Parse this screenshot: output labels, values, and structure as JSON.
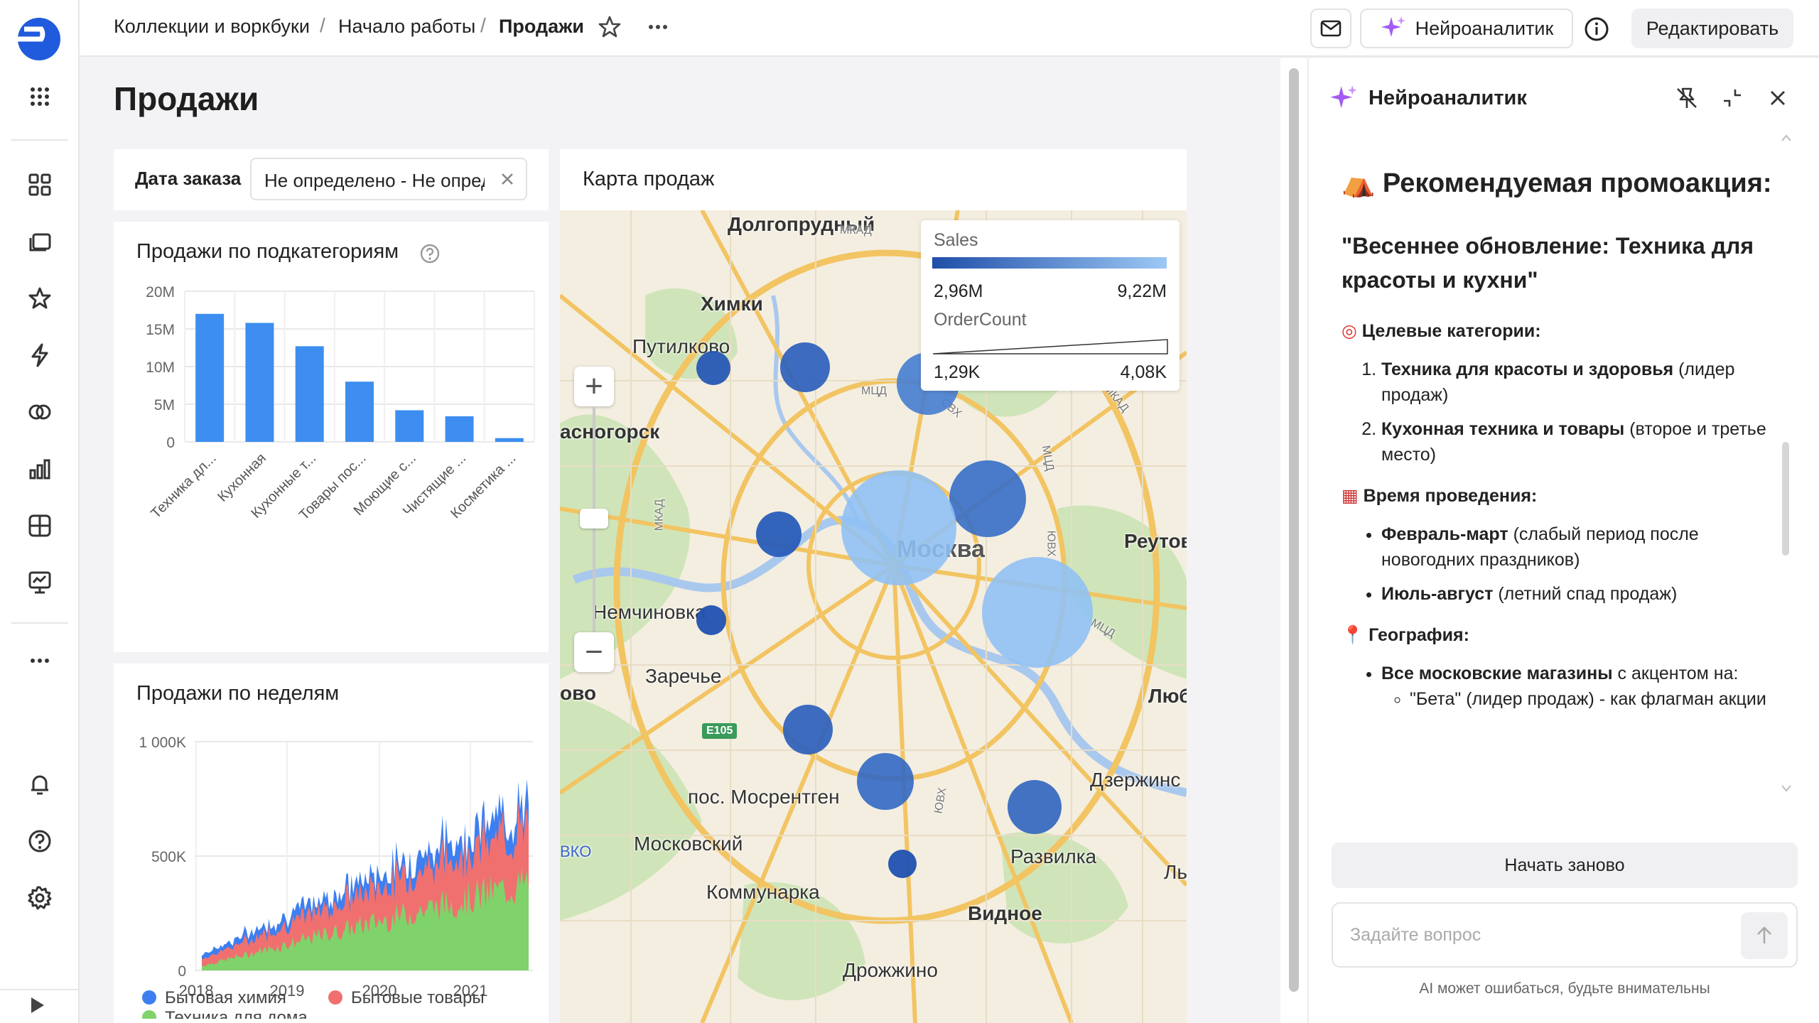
{
  "breadcrumbs": [
    "Коллекции и воркбуки",
    "Начало работы",
    "Продажи"
  ],
  "topbar": {
    "assistant_label": "Нейроаналитик",
    "edit_label": "Редактировать"
  },
  "page": {
    "title": "Продажи"
  },
  "filter": {
    "label": "Дата заказа",
    "value": "Не определено - Не определено"
  },
  "colors": {
    "bar": "#3d8ef0",
    "area_chem": "#3d7ff0",
    "area_goods": "#f07070",
    "area_tech": "#7fd36a",
    "bubble_dark": "#2d5fb8",
    "bubble_light": "#8ec0f5"
  },
  "charts": {
    "subcategories": {
      "title": "Продажи по подкатегориям",
      "chart_data": {
        "type": "bar",
        "categories": [
          "Техника дл...",
          "Кухонная",
          "Кухонные т...",
          "Товары пос...",
          "Моющие с...",
          "Чистящие ...",
          "Косметика ..."
        ],
        "values": [
          17.0,
          15.8,
          12.7,
          8.0,
          4.2,
          3.4,
          0.5
        ],
        "unit": "M",
        "y_ticks": [
          "0",
          "5M",
          "10M",
          "15M",
          "20M"
        ],
        "ylim": [
          0,
          20
        ],
        "grid": true
      }
    },
    "weekly": {
      "title": "Продажи по неделям",
      "chart_data": {
        "type": "area",
        "stacked": true,
        "x_ticks": [
          "2018",
          "2019",
          "2020",
          "2021"
        ],
        "y_ticks": [
          "0",
          "500K",
          "1 000K"
        ],
        "ylim": [
          0,
          1000
        ],
        "series": [
          {
            "name": "Бытовая химия",
            "start": 20,
            "end": 95
          },
          {
            "name": "Бытовые товары",
            "start": 30,
            "end": 250
          },
          {
            "name": "Техника для дома",
            "start": 20,
            "end": 380
          }
        ],
        "legend": "bottom"
      }
    }
  },
  "map": {
    "title": "Карта продаж",
    "labels": [
      "Долгопрудный",
      "Химки",
      "Путилково",
      "асногорск",
      "Москва",
      "Реутов",
      "Немчиновка",
      "Заречье",
      "ово",
      "Люб",
      "пос. Мосрентген",
      "Московский",
      "Коммунарка",
      "Видное",
      "Развилка",
      "Дзержинс",
      "Дрожжино",
      "Ль",
      "МКАД",
      "МКАД",
      "МКАД",
      "МЦД",
      "МЦД",
      "МЦД",
      "ЮВХ",
      "ЮВХ",
      "СВХ",
      "E105",
      "ВКО"
    ],
    "legend": {
      "sales_title": "Sales",
      "sales_min": "2,96M",
      "sales_max": "9,22M",
      "count_title": "OrderCount",
      "count_min": "1,29K",
      "count_max": "4,08K"
    },
    "zoom_in": "+",
    "zoom_out": "−"
  },
  "assistant": {
    "title": "Нейроаналитик",
    "heading": "Рекомендуемая промоакция:",
    "promo": "\"Весеннее обновление: Техника для красоты и кухни\"",
    "targets_title": "Целевые категории:",
    "targets": [
      {
        "bold": "Техника для красоты и здоровья",
        "rest": " (лидер продаж)"
      },
      {
        "bold": "Кухонная техника и товары",
        "rest": " (второе и третье место)"
      }
    ],
    "time_title": "Время проведения:",
    "times": [
      {
        "bold": "Февраль-март",
        "rest": " (слабый период после новогодних праздников)"
      },
      {
        "bold": "Июль-август",
        "rest": " (летний спад продаж)"
      }
    ],
    "geo_title": "География:",
    "geo_bold": "Все московские магазины",
    "geo_rest": " с акцентом на:",
    "geo_sub": "\"Бета\" (лидер продаж) - как флагман акции",
    "restart_label": "Начать заново",
    "input_placeholder": "Задайте вопрос",
    "disclaimer": "AI может ошибаться, будьте внимательны"
  }
}
